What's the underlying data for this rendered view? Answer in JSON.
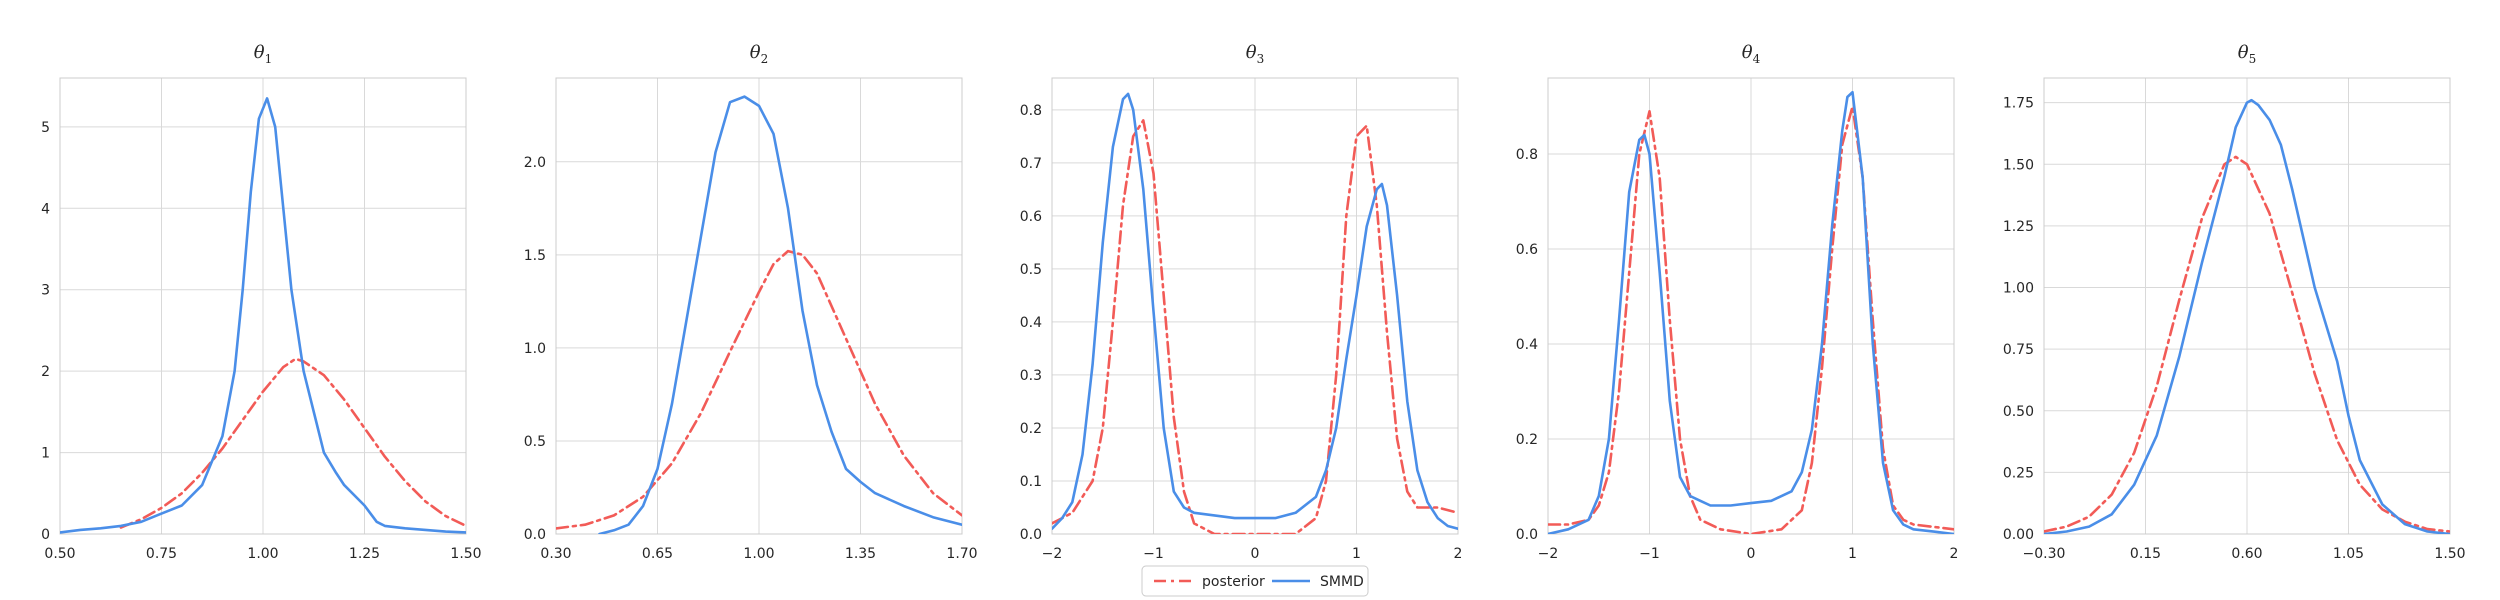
{
  "figure": {
    "legend": {
      "placement": "bottom-center",
      "entries": [
        "posterior",
        "SMMD"
      ]
    },
    "colors": {
      "posterior": "#f25b57",
      "SMMD": "#4a8ee8",
      "grid": "#d9d9d9",
      "frame": "#cccccc"
    }
  },
  "chart_data": [
    {
      "type": "line",
      "title_base": "θ",
      "title_sub": "1",
      "xlim": [
        0.5,
        1.5
      ],
      "ylim": [
        0,
        5.6
      ],
      "xticks": [
        0.5,
        0.75,
        1.0,
        1.25,
        1.5
      ],
      "xtick_labels": [
        "0.50",
        "0.75",
        "1.00",
        "1.25",
        "1.50"
      ],
      "yticks": [
        0,
        1,
        2,
        3,
        4,
        5
      ],
      "ytick_labels": [
        "0",
        "1",
        "2",
        "3",
        "4",
        "5"
      ],
      "grid": true,
      "series": [
        {
          "name": "posterior",
          "style": "dashdot",
          "x": [
            0.65,
            0.7,
            0.75,
            0.8,
            0.85,
            0.9,
            0.95,
            1.0,
            1.05,
            1.08,
            1.1,
            1.15,
            1.2,
            1.25,
            1.3,
            1.35,
            1.4,
            1.45,
            1.5
          ],
          "y": [
            0.08,
            0.18,
            0.32,
            0.5,
            0.75,
            1.05,
            1.4,
            1.75,
            2.05,
            2.15,
            2.12,
            1.95,
            1.65,
            1.3,
            0.95,
            0.65,
            0.4,
            0.22,
            0.1
          ]
        },
        {
          "name": "SMMD",
          "style": "solid",
          "x": [
            0.5,
            0.55,
            0.6,
            0.65,
            0.7,
            0.75,
            0.8,
            0.85,
            0.9,
            0.93,
            0.95,
            0.97,
            0.99,
            1.01,
            1.03,
            1.05,
            1.07,
            1.1,
            1.13,
            1.15,
            1.18,
            1.2,
            1.25,
            1.28,
            1.3,
            1.35,
            1.4,
            1.45,
            1.5
          ],
          "y": [
            0.02,
            0.05,
            0.07,
            0.1,
            0.15,
            0.25,
            0.35,
            0.6,
            1.2,
            2.0,
            3.0,
            4.2,
            5.1,
            5.35,
            5.0,
            4.0,
            3.0,
            2.0,
            1.4,
            1.0,
            0.75,
            0.6,
            0.35,
            0.15,
            0.1,
            0.07,
            0.05,
            0.03,
            0.02
          ]
        }
      ]
    },
    {
      "type": "line",
      "title_base": "θ",
      "title_sub": "2",
      "xlim": [
        0.3,
        1.7
      ],
      "ylim": [
        0,
        2.45
      ],
      "xticks": [
        0.3,
        0.65,
        1.0,
        1.35,
        1.7
      ],
      "xtick_labels": [
        "0.30",
        "0.65",
        "1.00",
        "1.35",
        "1.70"
      ],
      "yticks": [
        0,
        0.5,
        1.0,
        1.5,
        2.0
      ],
      "ytick_labels": [
        "0.0",
        "0.5",
        "1.0",
        "1.5",
        "2.0"
      ],
      "grid": true,
      "series": [
        {
          "name": "posterior",
          "style": "dashdot",
          "x": [
            0.3,
            0.4,
            0.5,
            0.6,
            0.7,
            0.8,
            0.9,
            1.0,
            1.05,
            1.1,
            1.15,
            1.2,
            1.3,
            1.4,
            1.5,
            1.6,
            1.7
          ],
          "y": [
            0.03,
            0.05,
            0.1,
            0.2,
            0.38,
            0.65,
            0.98,
            1.3,
            1.45,
            1.52,
            1.5,
            1.4,
            1.05,
            0.7,
            0.42,
            0.22,
            0.1
          ]
        },
        {
          "name": "SMMD",
          "style": "solid",
          "x": [
            0.45,
            0.5,
            0.55,
            0.6,
            0.65,
            0.7,
            0.75,
            0.8,
            0.85,
            0.9,
            0.95,
            1.0,
            1.05,
            1.1,
            1.15,
            1.2,
            1.25,
            1.3,
            1.35,
            1.4,
            1.5,
            1.6,
            1.7
          ],
          "y": [
            0.0,
            0.02,
            0.05,
            0.15,
            0.35,
            0.7,
            1.15,
            1.6,
            2.05,
            2.32,
            2.35,
            2.3,
            2.15,
            1.75,
            1.2,
            0.8,
            0.55,
            0.35,
            0.28,
            0.22,
            0.15,
            0.09,
            0.05
          ]
        }
      ]
    },
    {
      "type": "line",
      "title_base": "θ",
      "title_sub": "3",
      "xlim": [
        -2,
        2
      ],
      "ylim": [
        0,
        0.86
      ],
      "xticks": [
        -2,
        -1,
        0,
        1,
        2
      ],
      "xtick_labels": [
        "−2",
        "−1",
        "0",
        "1",
        "2"
      ],
      "yticks": [
        0,
        0.1,
        0.2,
        0.3,
        0.4,
        0.5,
        0.6,
        0.7,
        0.8
      ],
      "ytick_labels": [
        "0.0",
        "0.1",
        "0.2",
        "0.3",
        "0.4",
        "0.5",
        "0.6",
        "0.7",
        "0.8"
      ],
      "grid": true,
      "series": [
        {
          "name": "posterior",
          "style": "dashdot",
          "x": [
            -2,
            -1.8,
            -1.6,
            -1.5,
            -1.4,
            -1.3,
            -1.2,
            -1.1,
            -1.0,
            -0.9,
            -0.8,
            -0.7,
            -0.6,
            -0.4,
            0,
            0.4,
            0.6,
            0.7,
            0.8,
            0.9,
            1.0,
            1.1,
            1.2,
            1.3,
            1.4,
            1.5,
            1.6,
            1.8,
            2.0
          ],
          "y": [
            0.02,
            0.04,
            0.1,
            0.2,
            0.4,
            0.62,
            0.75,
            0.78,
            0.68,
            0.45,
            0.22,
            0.08,
            0.02,
            0.0,
            0.0,
            0.0,
            0.03,
            0.1,
            0.3,
            0.6,
            0.75,
            0.77,
            0.62,
            0.38,
            0.18,
            0.08,
            0.05,
            0.05,
            0.04
          ]
        },
        {
          "name": "SMMD",
          "style": "solid",
          "x": [
            -2,
            -1.9,
            -1.8,
            -1.7,
            -1.6,
            -1.5,
            -1.4,
            -1.3,
            -1.25,
            -1.2,
            -1.1,
            -1.0,
            -0.9,
            -0.8,
            -0.7,
            -0.6,
            -0.4,
            -0.2,
            0,
            0.2,
            0.4,
            0.6,
            0.7,
            0.8,
            0.9,
            1.0,
            1.1,
            1.2,
            1.25,
            1.3,
            1.4,
            1.5,
            1.6,
            1.7,
            1.8,
            1.9,
            2.0
          ],
          "y": [
            0.01,
            0.03,
            0.06,
            0.15,
            0.32,
            0.55,
            0.73,
            0.82,
            0.83,
            0.8,
            0.65,
            0.42,
            0.2,
            0.08,
            0.05,
            0.04,
            0.035,
            0.03,
            0.03,
            0.03,
            0.04,
            0.07,
            0.12,
            0.2,
            0.33,
            0.45,
            0.58,
            0.65,
            0.66,
            0.62,
            0.45,
            0.25,
            0.12,
            0.06,
            0.03,
            0.015,
            0.01
          ]
        }
      ]
    },
    {
      "type": "line",
      "title_base": "θ",
      "title_sub": "4",
      "xlim": [
        -2,
        2
      ],
      "ylim": [
        0,
        0.96
      ],
      "xticks": [
        -2,
        -1,
        0,
        1,
        2
      ],
      "xtick_labels": [
        "−2",
        "−1",
        "0",
        "1",
        "2"
      ],
      "yticks": [
        0,
        0.2,
        0.4,
        0.6,
        0.8
      ],
      "ytick_labels": [
        "0.0",
        "0.2",
        "0.4",
        "0.6",
        "0.8"
      ],
      "grid": true,
      "series": [
        {
          "name": "posterior",
          "style": "dashdot",
          "x": [
            -2,
            -1.8,
            -1.6,
            -1.5,
            -1.4,
            -1.3,
            -1.2,
            -1.1,
            -1.0,
            -0.9,
            -0.8,
            -0.7,
            -0.6,
            -0.5,
            -0.3,
            0,
            0.3,
            0.5,
            0.6,
            0.7,
            0.8,
            0.9,
            1.0,
            1.1,
            1.2,
            1.3,
            1.4,
            1.5,
            1.6,
            1.8,
            2.0
          ],
          "y": [
            0.02,
            0.02,
            0.03,
            0.06,
            0.13,
            0.3,
            0.55,
            0.8,
            0.89,
            0.75,
            0.45,
            0.2,
            0.08,
            0.03,
            0.01,
            0.0,
            0.01,
            0.05,
            0.15,
            0.35,
            0.6,
            0.82,
            0.9,
            0.75,
            0.45,
            0.18,
            0.06,
            0.03,
            0.02,
            0.015,
            0.01
          ]
        },
        {
          "name": "SMMD",
          "style": "solid",
          "x": [
            -2,
            -1.8,
            -1.6,
            -1.5,
            -1.4,
            -1.3,
            -1.2,
            -1.1,
            -1.05,
            -1.0,
            -0.9,
            -0.8,
            -0.7,
            -0.6,
            -0.5,
            -0.4,
            -0.2,
            0,
            0.2,
            0.4,
            0.5,
            0.6,
            0.7,
            0.8,
            0.9,
            0.95,
            1.0,
            1.1,
            1.2,
            1.3,
            1.4,
            1.5,
            1.6,
            1.8,
            2.0
          ],
          "y": [
            0.0,
            0.01,
            0.03,
            0.08,
            0.2,
            0.45,
            0.72,
            0.83,
            0.84,
            0.8,
            0.55,
            0.28,
            0.12,
            0.08,
            0.07,
            0.06,
            0.06,
            0.065,
            0.07,
            0.09,
            0.13,
            0.22,
            0.4,
            0.65,
            0.85,
            0.92,
            0.93,
            0.75,
            0.4,
            0.15,
            0.05,
            0.02,
            0.01,
            0.005,
            0.0
          ]
        }
      ]
    },
    {
      "type": "line",
      "title_base": "θ",
      "title_sub": "5",
      "xlim": [
        -0.3,
        1.5
      ],
      "ylim": [
        0,
        1.85
      ],
      "xticks": [
        -0.3,
        0.15,
        0.6,
        1.05,
        1.5
      ],
      "xtick_labels": [
        "−0.30",
        "0.15",
        "0.60",
        "1.05",
        "1.50"
      ],
      "yticks": [
        0,
        0.25,
        0.5,
        0.75,
        1.0,
        1.25,
        1.5,
        1.75
      ],
      "ytick_labels": [
        "0.00",
        "0.25",
        "0.50",
        "0.75",
        "1.00",
        "1.25",
        "1.50",
        "1.75"
      ],
      "grid": true,
      "series": [
        {
          "name": "posterior",
          "style": "dashdot",
          "x": [
            -0.3,
            -0.2,
            -0.1,
            0.0,
            0.1,
            0.2,
            0.3,
            0.4,
            0.5,
            0.55,
            0.6,
            0.7,
            0.8,
            0.9,
            1.0,
            1.1,
            1.2,
            1.3,
            1.4,
            1.5
          ],
          "y": [
            0.01,
            0.03,
            0.07,
            0.16,
            0.33,
            0.6,
            0.95,
            1.28,
            1.5,
            1.53,
            1.5,
            1.3,
            0.98,
            0.65,
            0.38,
            0.2,
            0.1,
            0.05,
            0.02,
            0.01
          ]
        },
        {
          "name": "SMMD",
          "style": "solid",
          "x": [
            -0.3,
            -0.2,
            -0.1,
            0.0,
            0.1,
            0.2,
            0.3,
            0.4,
            0.5,
            0.55,
            0.6,
            0.62,
            0.65,
            0.7,
            0.75,
            0.8,
            0.85,
            0.9,
            1.0,
            1.05,
            1.1,
            1.2,
            1.3,
            1.4,
            1.5
          ],
          "y": [
            0.0,
            0.01,
            0.03,
            0.08,
            0.2,
            0.4,
            0.72,
            1.1,
            1.45,
            1.65,
            1.75,
            1.76,
            1.74,
            1.68,
            1.58,
            1.4,
            1.2,
            1.0,
            0.7,
            0.48,
            0.3,
            0.12,
            0.04,
            0.01,
            0.0
          ]
        }
      ]
    }
  ]
}
